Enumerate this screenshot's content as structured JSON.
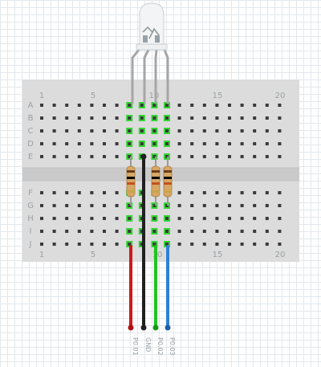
{
  "breadboard": {
    "column_numbers": [
      "1",
      "5",
      "10",
      "15",
      "20"
    ],
    "rows_top": [
      "A",
      "B",
      "C",
      "D",
      "E"
    ],
    "rows_bottom": [
      "F",
      "G",
      "H",
      "I",
      "J"
    ],
    "colors": {
      "board": "#dcdcdc",
      "hole": "#3a3a3a",
      "active_hole": "#35d535",
      "label": "#9aa0a4"
    }
  },
  "led": {
    "name": "rgb-led",
    "color": "#f2f4f5",
    "leg_color": "#a6a6a6"
  },
  "resistor": {
    "body_color": "#d8a766",
    "bands": [
      "#6b3d1a",
      "#000000",
      "#c2521f",
      "#c8a44a"
    ]
  },
  "wires": [
    {
      "label": "P0.01",
      "color": "#cc1a1a"
    },
    {
      "label": "GND",
      "color": "#202020"
    },
    {
      "label": "P0.02",
      "color": "#1fc41f"
    },
    {
      "label": "P0.03",
      "color": "#2f7fd6"
    }
  ]
}
